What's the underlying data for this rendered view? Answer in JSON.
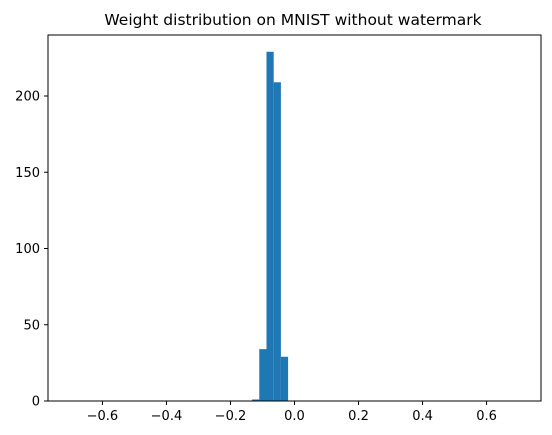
{
  "chart_data": {
    "type": "histogram",
    "title": "Weight distribution on MNIST without watermark",
    "xlabel": "",
    "ylabel": "",
    "xlim": [
      -0.77,
      0.77
    ],
    "ylim": [
      0,
      240
    ],
    "grid": false,
    "bar_color": "#1f77b4",
    "bins": [
      {
        "x0": -0.1325,
        "x1": -0.11,
        "count": 1
      },
      {
        "x0": -0.11,
        "x1": -0.0875,
        "count": 34
      },
      {
        "x0": -0.0875,
        "x1": -0.065,
        "count": 229
      },
      {
        "x0": -0.065,
        "x1": -0.0425,
        "count": 209
      },
      {
        "x0": -0.0425,
        "x1": -0.02,
        "count": 29
      }
    ],
    "x_ticks": [
      -0.6,
      -0.4,
      -0.2,
      0.0,
      0.2,
      0.4,
      0.6
    ],
    "x_tick_labels": [
      "−0.6",
      "−0.4",
      "−0.2",
      "0.0",
      "0.2",
      "0.4",
      "0.6"
    ],
    "y_ticks": [
      0,
      50,
      100,
      150,
      200
    ],
    "y_tick_labels": [
      "0",
      "50",
      "100",
      "150",
      "200"
    ]
  }
}
